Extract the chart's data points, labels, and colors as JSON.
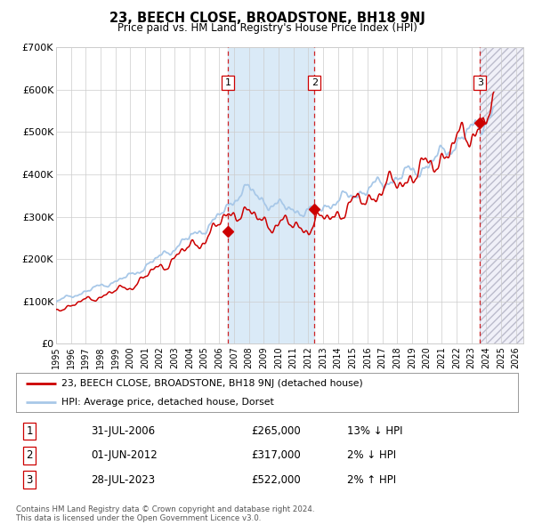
{
  "title": "23, BEECH CLOSE, BROADSTONE, BH18 9NJ",
  "subtitle": "Price paid vs. HM Land Registry's House Price Index (HPI)",
  "ylim": [
    0,
    700000
  ],
  "xlim_start": 1995.0,
  "xlim_end": 2026.5,
  "yticks": [
    0,
    100000,
    200000,
    300000,
    400000,
    500000,
    600000,
    700000
  ],
  "ytick_labels": [
    "£0",
    "£100K",
    "£200K",
    "£300K",
    "£400K",
    "£500K",
    "£600K",
    "£700K"
  ],
  "xtick_years": [
    1995,
    1996,
    1997,
    1998,
    1999,
    2000,
    2001,
    2002,
    2003,
    2004,
    2005,
    2006,
    2007,
    2008,
    2009,
    2010,
    2011,
    2012,
    2013,
    2014,
    2015,
    2016,
    2017,
    2018,
    2019,
    2020,
    2021,
    2022,
    2023,
    2024,
    2025,
    2026
  ],
  "hpi_color": "#a8c8e8",
  "price_color": "#cc0000",
  "background_color": "#ffffff",
  "grid_color": "#cccccc",
  "sale1_x": 2006.58,
  "sale1_y": 265000,
  "sale1_label": "1",
  "sale2_x": 2012.42,
  "sale2_y": 317000,
  "sale2_label": "2",
  "sale3_x": 2023.58,
  "sale3_y": 522000,
  "sale3_label": "3",
  "shade_color": "#daeaf7",
  "hatch_color": "#e8e8f0",
  "legend_label_price": "23, BEECH CLOSE, BROADSTONE, BH18 9NJ (detached house)",
  "legend_label_hpi": "HPI: Average price, detached house, Dorset",
  "footer": "Contains HM Land Registry data © Crown copyright and database right 2024.\nThis data is licensed under the Open Government Licence v3.0.",
  "table_rows": [
    {
      "num": "1",
      "date": "31-JUL-2006",
      "price": "£265,000",
      "hpi": "13% ↓ HPI"
    },
    {
      "num": "2",
      "date": "01-JUN-2012",
      "price": "£317,000",
      "hpi": "2% ↓ HPI"
    },
    {
      "num": "3",
      "date": "28-JUL-2023",
      "price": "£522,000",
      "hpi": "2% ↑ HPI"
    }
  ]
}
